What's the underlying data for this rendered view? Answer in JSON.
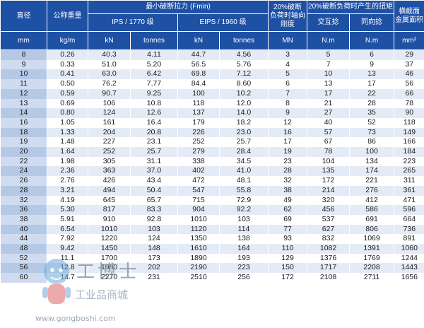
{
  "headers": {
    "diameter": "直径",
    "nominal_weight": "公称重量",
    "min_breaking_force": "最小破断拉力 (Fmin)",
    "ips": "IPS / 1770 级",
    "eips": "EIPS / 1960 级",
    "axial_stiffness_l1": "20%破断",
    "axial_stiffness_l2": "负荷时轴向",
    "axial_stiffness_l3": "刚度",
    "torque": "20%破断负荷时产生的扭矩",
    "torque_cross": "交互捻",
    "torque_same": "同向捻",
    "area_l1": "横截面",
    "area_l2": "金属面积",
    "units": [
      "mm",
      "kg/m",
      "kN",
      "tonnes",
      "kN",
      "tonnes",
      "MN",
      "N.m",
      "N.m",
      "mm²"
    ]
  },
  "rows": [
    [
      "8",
      "0.26",
      "40.3",
      "4.11",
      "44.7",
      "4.56",
      "3",
      "5",
      "6",
      "29"
    ],
    [
      "9",
      "0.33",
      "51.0",
      "5.20",
      "56.5",
      "5.76",
      "4",
      "7",
      "9",
      "37"
    ],
    [
      "10",
      "0.41",
      "63.0",
      "6.42",
      "69.8",
      "7.12",
      "5",
      "10",
      "13",
      "46"
    ],
    [
      "11",
      "0.50",
      "76.2",
      "7.77",
      "84.4",
      "8.60",
      "6",
      "13",
      "17",
      "56"
    ],
    [
      "12",
      "0.59",
      "90.7",
      "9.25",
      "100",
      "10.2",
      "7",
      "17",
      "22",
      "66"
    ],
    [
      "13",
      "0.69",
      "106",
      "10.8",
      "118",
      "12.0",
      "8",
      "21",
      "28",
      "78"
    ],
    [
      "14",
      "0.80",
      "124",
      "12.6",
      "137",
      "14.0",
      "9",
      "27",
      "35",
      "90"
    ],
    [
      "16",
      "1.05",
      "161",
      "16.4",
      "179",
      "18.2",
      "12",
      "40",
      "52",
      "118"
    ],
    [
      "18",
      "1.33",
      "204",
      "20.8",
      "226",
      "23.0",
      "16",
      "57",
      "73",
      "149"
    ],
    [
      "19",
      "1.48",
      "227",
      "23.1",
      "252",
      "25.7",
      "17",
      "67",
      "86",
      "166"
    ],
    [
      "20",
      "1.64",
      "252",
      "25.7",
      "279",
      "28.4",
      "19",
      "78",
      "100",
      "184"
    ],
    [
      "22",
      "1.98",
      "305",
      "31.1",
      "338",
      "34.5",
      "23",
      "104",
      "134",
      "223"
    ],
    [
      "24",
      "2.36",
      "363",
      "37.0",
      "402",
      "41.0",
      "28",
      "135",
      "174",
      "265"
    ],
    [
      "26",
      "2.76",
      "426",
      "43.4",
      "472",
      "48.1",
      "32",
      "172",
      "221",
      "311"
    ],
    [
      "28",
      "3.21",
      "494",
      "50.4",
      "547",
      "55.8",
      "38",
      "214",
      "276",
      "361"
    ],
    [
      "32",
      "4.19",
      "645",
      "65.7",
      "715",
      "72.9",
      "49",
      "320",
      "412",
      "471"
    ],
    [
      "36",
      "5.30",
      "817",
      "83.3",
      "904",
      "92.2",
      "62",
      "456",
      "586",
      "596"
    ],
    [
      "38",
      "5.91",
      "910",
      "92.8",
      "1010",
      "103",
      "69",
      "537",
      "691",
      "664"
    ],
    [
      "40",
      "6.54",
      "1010",
      "103",
      "1120",
      "114",
      "77",
      "627",
      "806",
      "736"
    ],
    [
      "44",
      "7.92",
      "1220",
      "124",
      "1350",
      "138",
      "93",
      "832",
      "1069",
      "891"
    ],
    [
      "48",
      "9.42",
      "1450",
      "148",
      "1610",
      "164",
      "110",
      "1082",
      "1391",
      "1060"
    ],
    [
      "52",
      "11.1",
      "1700",
      "173",
      "1890",
      "193",
      "129",
      "1376",
      "1769",
      "1244"
    ],
    [
      "56",
      "12.8",
      "1980",
      "202",
      "2190",
      "223",
      "150",
      "1717",
      "2208",
      "1443"
    ],
    [
      "60",
      "14.7",
      "2270",
      "231",
      "2510",
      "256",
      "172",
      "2108",
      "2711",
      "1656"
    ]
  ],
  "watermark": {
    "logo_text": "工博士",
    "sub_text": "工业品商城",
    "url": "www.gongboshi.com"
  }
}
